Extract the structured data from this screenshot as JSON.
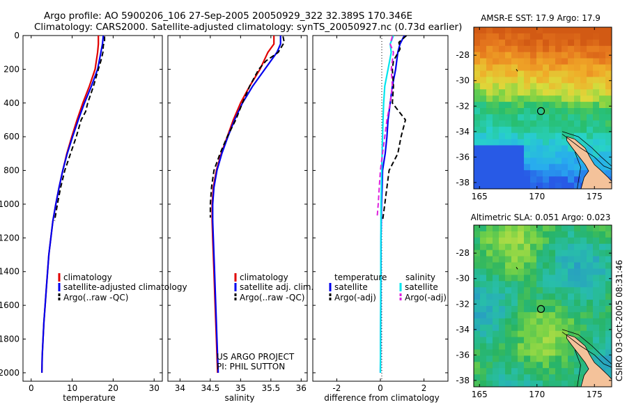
{
  "header": {
    "title_line1": "Argo profile: AO 5900206_106 27-Sep-2005 20050929_322 32.389S 170.346E",
    "title_line2": "Climatology: CARS2000. Satellite-adjusted climatology: synTS_20050927.nc (0.73d earlier)"
  },
  "footer": {
    "project_line1": "US ARGO PROJECT",
    "project_line2": "PI: PHIL SUTTON",
    "stamp": "CSIRO 03-Oct-2005 08:31:46"
  },
  "colors": {
    "climatology": "#e00000",
    "satellite": "#0000ee",
    "argo": "#000000",
    "salinity_satellite": "#00e5ee",
    "salinity_argo": "#dd22dd"
  },
  "chart_data": [
    {
      "id": "temperature",
      "type": "line",
      "xlabel": "temperature",
      "ylabel": "",
      "xlim": [
        -2,
        32
      ],
      "ylim": [
        2050,
        0
      ],
      "xticks": [
        0,
        10,
        20,
        30
      ],
      "yticks": [
        0,
        200,
        400,
        600,
        800,
        1000,
        1200,
        1400,
        1600,
        1800,
        2000
      ],
      "legend": [
        "climatology",
        "satellite-adjusted climatology",
        "Argo(..raw -QC)"
      ],
      "series": [
        {
          "name": "climatology",
          "color": "climatology",
          "dash": false,
          "points": [
            [
              16.4,
              0
            ],
            [
              16.4,
              50
            ],
            [
              16.2,
              100
            ],
            [
              15.6,
              200
            ],
            [
              14.2,
              300
            ],
            [
              12.6,
              400
            ],
            [
              11.2,
              500
            ],
            [
              9.9,
              600
            ],
            [
              8.7,
              700
            ],
            [
              7.7,
              800
            ],
            [
              6.8,
              900
            ],
            [
              6.0,
              1000
            ],
            [
              5.3,
              1100
            ],
            [
              4.8,
              1200
            ],
            [
              4.3,
              1300
            ],
            [
              4.0,
              1400
            ],
            [
              3.7,
              1500
            ],
            [
              3.4,
              1600
            ],
            [
              3.1,
              1700
            ],
            [
              2.9,
              1800
            ],
            [
              2.7,
              1900
            ],
            [
              2.6,
              2000
            ]
          ]
        },
        {
          "name": "satellite-adjusted climatology",
          "color": "satellite",
          "dash": false,
          "points": [
            [
              17.6,
              0
            ],
            [
              17.4,
              50
            ],
            [
              17.0,
              100
            ],
            [
              16.2,
              200
            ],
            [
              14.7,
              300
            ],
            [
              13.0,
              400
            ],
            [
              11.5,
              500
            ],
            [
              10.1,
              600
            ],
            [
              8.8,
              700
            ],
            [
              7.7,
              800
            ],
            [
              6.8,
              900
            ],
            [
              6.0,
              1000
            ],
            [
              5.3,
              1100
            ],
            [
              4.8,
              1200
            ],
            [
              4.3,
              1300
            ],
            [
              4.0,
              1400
            ],
            [
              3.7,
              1500
            ],
            [
              3.4,
              1600
            ],
            [
              3.1,
              1700
            ],
            [
              2.9,
              1800
            ],
            [
              2.7,
              1900
            ],
            [
              2.6,
              2000
            ]
          ]
        },
        {
          "name": "Argo(..raw -QC)",
          "color": "argo",
          "dash": true,
          "points": [
            [
              17.9,
              5
            ],
            [
              17.9,
              30
            ],
            [
              17.6,
              60
            ],
            [
              17.5,
              100
            ],
            [
              17.0,
              150
            ],
            [
              16.4,
              200
            ],
            [
              15.2,
              300
            ],
            [
              13.8,
              400
            ],
            [
              13.3,
              450
            ],
            [
              12.2,
              500
            ],
            [
              11.0,
              600
            ],
            [
              9.6,
              700
            ],
            [
              8.2,
              800
            ],
            [
              7.2,
              900
            ],
            [
              6.4,
              1000
            ],
            [
              5.7,
              1100
            ]
          ]
        }
      ]
    },
    {
      "id": "salinity",
      "type": "line",
      "xlabel": "salinity",
      "ylabel": "",
      "xlim": [
        33.8,
        36.1
      ],
      "ylim": [
        2050,
        0
      ],
      "xticks": [
        34,
        34.5,
        35,
        35.5,
        36
      ],
      "yticks": [
        0,
        200,
        400,
        600,
        800,
        1000,
        1200,
        1400,
        1600,
        1800,
        2000
      ],
      "legend": [
        "climatology",
        "satellite adj. clim.",
        "Argo(..raw -QC)"
      ],
      "series": [
        {
          "name": "climatology",
          "color": "climatology",
          "dash": false,
          "points": [
            [
              35.55,
              0
            ],
            [
              35.55,
              50
            ],
            [
              35.45,
              100
            ],
            [
              35.32,
              200
            ],
            [
              35.15,
              300
            ],
            [
              35.0,
              400
            ],
            [
              34.88,
              500
            ],
            [
              34.78,
              600
            ],
            [
              34.68,
              700
            ],
            [
              34.6,
              800
            ],
            [
              34.55,
              900
            ],
            [
              34.53,
              1000
            ],
            [
              34.53,
              1100
            ],
            [
              34.54,
              1200
            ],
            [
              34.56,
              1400
            ],
            [
              34.58,
              1600
            ],
            [
              34.6,
              1800
            ],
            [
              34.62,
              2000
            ]
          ]
        },
        {
          "name": "satellite adj. clim.",
          "color": "satellite",
          "dash": false,
          "points": [
            [
              35.66,
              0
            ],
            [
              35.66,
              50
            ],
            [
              35.6,
              100
            ],
            [
              35.4,
              200
            ],
            [
              35.2,
              300
            ],
            [
              35.03,
              400
            ],
            [
              34.9,
              500
            ],
            [
              34.79,
              600
            ],
            [
              34.69,
              700
            ],
            [
              34.61,
              800
            ],
            [
              34.56,
              900
            ],
            [
              34.54,
              1000
            ],
            [
              34.54,
              1100
            ],
            [
              34.55,
              1200
            ],
            [
              34.57,
              1400
            ],
            [
              34.59,
              1600
            ],
            [
              34.61,
              1800
            ],
            [
              34.63,
              2000
            ]
          ]
        },
        {
          "name": "Argo(..raw -QC)",
          "color": "argo",
          "dash": true,
          "points": [
            [
              35.7,
              5
            ],
            [
              35.72,
              40
            ],
            [
              35.62,
              100
            ],
            [
              35.42,
              150
            ],
            [
              35.3,
              200
            ],
            [
              35.15,
              300
            ],
            [
              35.03,
              400
            ],
            [
              34.92,
              500
            ],
            [
              34.78,
              600
            ],
            [
              34.66,
              700
            ],
            [
              34.56,
              800
            ],
            [
              34.52,
              900
            ],
            [
              34.5,
              1000
            ],
            [
              34.5,
              1080
            ]
          ]
        }
      ]
    },
    {
      "id": "difference",
      "type": "line",
      "xlabel": "difference from climatology",
      "ylabel": "",
      "xlim": [
        -3.1,
        3.1
      ],
      "ylim": [
        2050,
        0
      ],
      "xticks": [
        -2,
        0,
        2
      ],
      "yticks": [
        0,
        200,
        400,
        600,
        800,
        1000,
        1200,
        1400,
        1600,
        1800,
        2000
      ],
      "legend_titles": [
        "temperature",
        "salinity"
      ],
      "legend": [
        "satellite",
        "Argo(-adj)",
        "satellite",
        "Argo(-adj)"
      ],
      "series": [
        {
          "name": "satellite",
          "group": "temperature",
          "color": "satellite",
          "dash": false,
          "points": [
            [
              1.1,
              0
            ],
            [
              0.9,
              50
            ],
            [
              0.8,
              100
            ],
            [
              0.7,
              200
            ],
            [
              0.55,
              300
            ],
            [
              0.45,
              400
            ],
            [
              0.35,
              500
            ],
            [
              0.3,
              600
            ],
            [
              0.22,
              700
            ],
            [
              0.1,
              800
            ],
            [
              0.08,
              900
            ],
            [
              0.05,
              1000
            ],
            [
              0.03,
              1200
            ],
            [
              0.02,
              1600
            ],
            [
              0.0,
              2000
            ]
          ]
        },
        {
          "name": "Argo(-adj)",
          "group": "temperature",
          "color": "argo",
          "dash": true,
          "points": [
            [
              1.2,
              0
            ],
            [
              0.85,
              40
            ],
            [
              0.9,
              80
            ],
            [
              0.6,
              150
            ],
            [
              0.55,
              200
            ],
            [
              0.6,
              300
            ],
            [
              0.55,
              400
            ],
            [
              1.15,
              500
            ],
            [
              0.95,
              600
            ],
            [
              0.8,
              700
            ],
            [
              0.4,
              800
            ],
            [
              0.3,
              900
            ],
            [
              0.2,
              1000
            ],
            [
              0.1,
              1100
            ]
          ]
        },
        {
          "name": "satellite",
          "group": "salinity",
          "color": "salinity_satellite",
          "dash": false,
          "points": [
            [
              0.6,
              0
            ],
            [
              0.45,
              50
            ],
            [
              0.5,
              100
            ],
            [
              0.35,
              200
            ],
            [
              0.2,
              300
            ],
            [
              0.15,
              400
            ],
            [
              0.12,
              500
            ],
            [
              0.1,
              600
            ],
            [
              0.06,
              800
            ],
            [
              0.03,
              1000
            ],
            [
              0.02,
              1400
            ],
            [
              0.0,
              2000
            ]
          ]
        },
        {
          "name": "Argo(-adj)",
          "group": "salinity",
          "color": "salinity_argo",
          "dash": true,
          "points": [
            [
              0.55,
              5
            ],
            [
              0.45,
              50
            ],
            [
              0.6,
              100
            ],
            [
              0.5,
              200
            ],
            [
              0.55,
              300
            ],
            [
              0.45,
              400
            ],
            [
              0.3,
              500
            ],
            [
              0.2,
              600
            ],
            [
              0.1,
              700
            ],
            [
              0.0,
              800
            ],
            [
              -0.05,
              900
            ],
            [
              -0.1,
              1000
            ],
            [
              -0.15,
              1080
            ]
          ]
        }
      ]
    },
    {
      "id": "sst-map",
      "type": "heatmap",
      "title": "AMSR-E SST: 17.9 Argo: 17.9",
      "xlim": [
        164.5,
        176.5
      ],
      "ylim": [
        -38.5,
        -25.8
      ],
      "xticks": [
        165,
        170,
        175
      ],
      "yticks": [
        -28,
        -30,
        -32,
        -34,
        -36,
        -38
      ],
      "profile_location": [
        170.35,
        -32.39
      ]
    },
    {
      "id": "sla-map",
      "type": "heatmap",
      "title": "Altimetric SLA: 0.051 Argo: 0.023",
      "xlim": [
        164.5,
        176.5
      ],
      "ylim": [
        -38.5,
        -25.8
      ],
      "xticks": [
        165,
        170,
        175
      ],
      "yticks": [
        -28,
        -30,
        -32,
        -34,
        -36,
        -38
      ],
      "profile_location": [
        170.35,
        -32.39
      ]
    }
  ]
}
